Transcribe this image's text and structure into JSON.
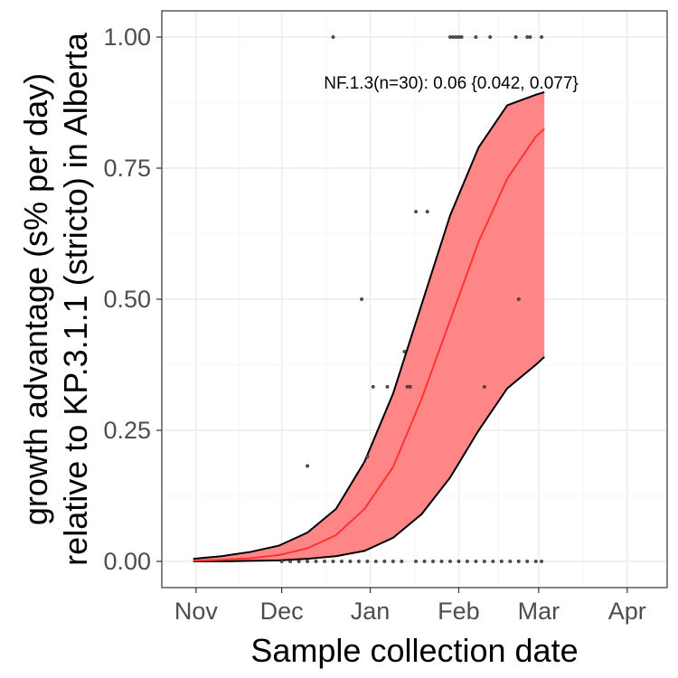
{
  "chart_data": {
    "type": "scatter",
    "xlabel": "Sample collection date",
    "ylabel_lines": [
      "growth advantage (s% per day)",
      "relative to KP.3.1.1 (stricto) in Alberta"
    ],
    "annotation": "NF.1.3(n=30): 0.06 {0.042, 0.077}",
    "xlim": [
      "2024-10-20",
      "2025-04-15"
    ],
    "ylim": [
      -0.05,
      1.05
    ],
    "x_ticks": [
      {
        "date": "2024-11-01",
        "label": "Nov"
      },
      {
        "date": "2024-12-01",
        "label": "Dec"
      },
      {
        "date": "2025-01-01",
        "label": "Jan"
      },
      {
        "date": "2025-02-01",
        "label": "Feb"
      },
      {
        "date": "2025-03-01",
        "label": "Mar"
      },
      {
        "date": "2025-04-01",
        "label": "Apr"
      }
    ],
    "y_ticks": [
      {
        "value": 0,
        "label": "0.00"
      },
      {
        "value": 0.25,
        "label": "0.25"
      },
      {
        "value": 0.5,
        "label": "0.50"
      },
      {
        "value": 0.75,
        "label": "0.75"
      },
      {
        "value": 1,
        "label": "1.00"
      }
    ],
    "grid": true,
    "fit": {
      "color": "#ff3333",
      "band_color": "#ff8080",
      "x": [
        "2024-10-31",
        "2024-11-10",
        "2024-11-20",
        "2024-11-30",
        "2024-12-10",
        "2024-12-20",
        "2024-12-30",
        "2025-01-09",
        "2025-01-19",
        "2025-01-29",
        "2025-02-08",
        "2025-02-18",
        "2025-02-28",
        "2025-03-03"
      ],
      "mid": [
        0.001,
        0.003,
        0.006,
        0.012,
        0.025,
        0.05,
        0.1,
        0.18,
        0.31,
        0.46,
        0.61,
        0.73,
        0.81,
        0.825
      ],
      "upper": [
        0.005,
        0.01,
        0.018,
        0.03,
        0.055,
        0.1,
        0.19,
        0.32,
        0.49,
        0.66,
        0.79,
        0.87,
        0.89,
        0.895
      ],
      "lower": [
        0.0,
        0.0,
        0.001,
        0.002,
        0.005,
        0.01,
        0.02,
        0.045,
        0.09,
        0.16,
        0.25,
        0.33,
        0.375,
        0.39
      ]
    },
    "points": [
      {
        "x": "2024-12-19",
        "y": 1.0
      },
      {
        "x": "2025-01-29",
        "y": 1.0
      },
      {
        "x": "2025-01-30",
        "y": 1.0
      },
      {
        "x": "2025-01-31",
        "y": 1.0
      },
      {
        "x": "2025-02-01",
        "y": 1.0
      },
      {
        "x": "2025-02-02",
        "y": 1.0
      },
      {
        "x": "2025-02-07",
        "y": 1.0
      },
      {
        "x": "2025-02-12",
        "y": 1.0
      },
      {
        "x": "2025-02-21",
        "y": 1.0
      },
      {
        "x": "2025-02-25",
        "y": 1.0
      },
      {
        "x": "2025-02-26",
        "y": 1.0
      },
      {
        "x": "2025-03-02",
        "y": 1.0
      },
      {
        "x": "2025-01-17",
        "y": 0.667
      },
      {
        "x": "2025-01-21",
        "y": 0.667
      },
      {
        "x": "2024-12-29",
        "y": 0.5
      },
      {
        "x": "2025-02-22",
        "y": 0.5
      },
      {
        "x": "2025-01-13",
        "y": 0.4
      },
      {
        "x": "2025-01-02",
        "y": 0.333
      },
      {
        "x": "2025-01-07",
        "y": 0.333
      },
      {
        "x": "2025-01-14",
        "y": 0.333
      },
      {
        "x": "2025-01-15",
        "y": 0.333
      },
      {
        "x": "2025-02-10",
        "y": 0.333
      },
      {
        "x": "2024-12-31",
        "y": 0.2
      },
      {
        "x": "2024-12-10",
        "y": 0.182
      },
      {
        "x": "2024-12-01",
        "y": 0.0
      },
      {
        "x": "2024-12-04",
        "y": 0.0
      },
      {
        "x": "2024-12-07",
        "y": 0.0
      },
      {
        "x": "2024-12-10",
        "y": 0.0
      },
      {
        "x": "2024-12-13",
        "y": 0.0
      },
      {
        "x": "2024-12-16",
        "y": 0.0
      },
      {
        "x": "2024-12-19",
        "y": 0.0
      },
      {
        "x": "2024-12-22",
        "y": 0.0
      },
      {
        "x": "2024-12-25",
        "y": 0.0
      },
      {
        "x": "2024-12-28",
        "y": 0.0
      },
      {
        "x": "2024-12-31",
        "y": 0.0
      },
      {
        "x": "2025-01-03",
        "y": 0.0
      },
      {
        "x": "2025-01-06",
        "y": 0.0
      },
      {
        "x": "2025-01-09",
        "y": 0.0
      },
      {
        "x": "2025-01-12",
        "y": 0.0
      },
      {
        "x": "2025-01-17",
        "y": 0.0
      },
      {
        "x": "2025-01-20",
        "y": 0.0
      },
      {
        "x": "2025-01-23",
        "y": 0.0
      },
      {
        "x": "2025-01-26",
        "y": 0.0
      },
      {
        "x": "2025-01-29",
        "y": 0.0
      },
      {
        "x": "2025-02-01",
        "y": 0.0
      },
      {
        "x": "2025-02-04",
        "y": 0.0
      },
      {
        "x": "2025-02-07",
        "y": 0.0
      },
      {
        "x": "2025-02-10",
        "y": 0.0
      },
      {
        "x": "2025-02-13",
        "y": 0.0
      },
      {
        "x": "2025-02-16",
        "y": 0.0
      },
      {
        "x": "2025-02-19",
        "y": 0.0
      },
      {
        "x": "2025-02-22",
        "y": 0.0
      },
      {
        "x": "2025-02-25",
        "y": 0.0
      },
      {
        "x": "2025-02-28",
        "y": 0.0
      },
      {
        "x": "2025-03-02",
        "y": 0.0
      }
    ]
  }
}
